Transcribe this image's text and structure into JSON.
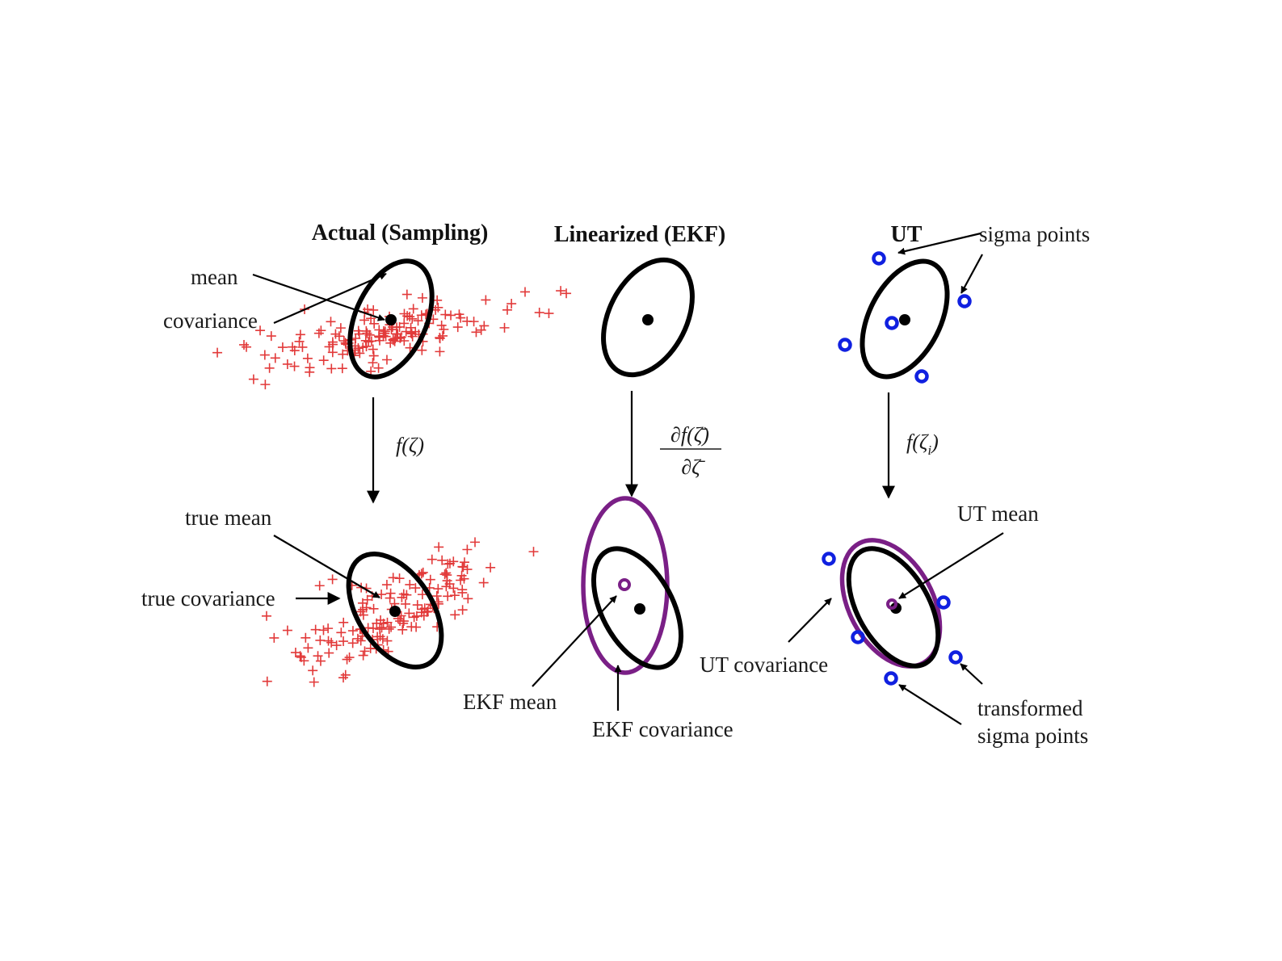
{
  "columns": {
    "actual": {
      "title": "Actual (Sampling)",
      "transform": "f(ζ)"
    },
    "ekf": {
      "title": "Linearized (EKF)",
      "transform_num": "∂f(ζ̄)",
      "transform_den": "∂ζ̄"
    },
    "ut": {
      "title": "UT",
      "transform": "f(ζ",
      "transform_sub": "i",
      "transform_close": ")"
    }
  },
  "labels": {
    "mean": "mean",
    "covariance": "covariance",
    "true_mean": "true mean",
    "true_covariance": "true covariance",
    "ekf_mean": "EKF mean",
    "ekf_covariance": "EKF covariance",
    "sigma_points": "sigma points",
    "ut_mean": "UT mean",
    "ut_covariance": "UT covariance",
    "transformed_1": "transformed",
    "transformed_2": "sigma points"
  },
  "colors": {
    "samples": "#e23a3a",
    "ekf_covariance": "#7a1f86",
    "sigma_points": "#1020e0",
    "ellipses": "#000000"
  }
}
